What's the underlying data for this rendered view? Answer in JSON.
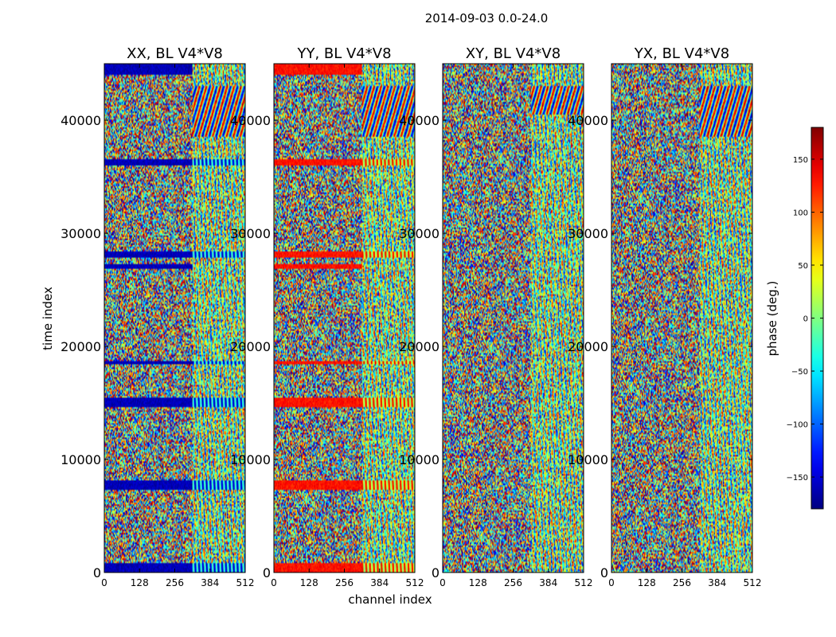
{
  "suptitle": "2014-09-03 0.0-24.0",
  "chart_data": {
    "type": "heatmap",
    "shared": {
      "xlabel": "channel index",
      "ylabel": "time index",
      "xlim": [
        0,
        512
      ],
      "ylim": [
        0,
        45000
      ],
      "xticks": [
        0,
        128,
        256,
        384,
        512
      ],
      "yticks": [
        0,
        10000,
        20000,
        30000,
        40000
      ],
      "channel_split": 320
    },
    "panels": [
      {
        "title": "XX, BL V4*V8",
        "polarization": "XX",
        "baseline": "V4*V8",
        "band_phase": -160,
        "bright_feature_channels": [
          320,
          512
        ],
        "bright_feature_time": [
          38500,
          43000
        ],
        "coherent_bands": [
          {
            "t0": 44000,
            "t1": 45000,
            "scope": "left"
          },
          {
            "t0": 36000,
            "t1": 36500,
            "scope": "full"
          },
          {
            "t0": 27800,
            "t1": 28400,
            "scope": "full"
          },
          {
            "t0": 26800,
            "t1": 27300,
            "scope": "left"
          },
          {
            "t0": 18400,
            "t1": 18700,
            "scope": "full"
          },
          {
            "t0": 14600,
            "t1": 15500,
            "scope": "full"
          },
          {
            "t0": 7300,
            "t1": 8100,
            "scope": "full"
          },
          {
            "t0": 0,
            "t1": 800,
            "scope": "full"
          }
        ]
      },
      {
        "title": "YY, BL V4*V8",
        "polarization": "YY",
        "baseline": "V4*V8",
        "band_phase": 130,
        "bright_feature_channels": [
          320,
          512
        ],
        "bright_feature_time": [
          38500,
          43000
        ],
        "coherent_bands": [
          {
            "t0": 44000,
            "t1": 45000,
            "scope": "left"
          },
          {
            "t0": 36000,
            "t1": 36500,
            "scope": "full"
          },
          {
            "t0": 27800,
            "t1": 28400,
            "scope": "full"
          },
          {
            "t0": 26800,
            "t1": 27300,
            "scope": "left"
          },
          {
            "t0": 18400,
            "t1": 18700,
            "scope": "full"
          },
          {
            "t0": 14600,
            "t1": 15500,
            "scope": "full"
          },
          {
            "t0": 7300,
            "t1": 8100,
            "scope": "full"
          },
          {
            "t0": 0,
            "t1": 800,
            "scope": "full"
          }
        ]
      },
      {
        "title": "XY, BL V4*V8",
        "polarization": "XY",
        "baseline": "V4*V8",
        "band_phase": null,
        "bright_feature_channels": [
          320,
          512
        ],
        "bright_feature_time": [
          40500,
          43000
        ],
        "coherent_bands": []
      },
      {
        "title": "YX, BL V4*V8",
        "polarization": "YX",
        "baseline": "V4*V8",
        "band_phase": null,
        "bright_feature_channels": [
          320,
          512
        ],
        "bright_feature_time": [
          38500,
          43000
        ],
        "coherent_bands": []
      }
    ],
    "colorbar": {
      "label": "phase (deg.)",
      "range": [
        -180,
        180
      ],
      "ticks": [
        -150,
        -100,
        -50,
        0,
        50,
        100,
        150
      ],
      "tick_labels": [
        "−150",
        "−100",
        "−50",
        "0",
        "50",
        "100",
        "150"
      ],
      "colormap": "jet"
    }
  }
}
